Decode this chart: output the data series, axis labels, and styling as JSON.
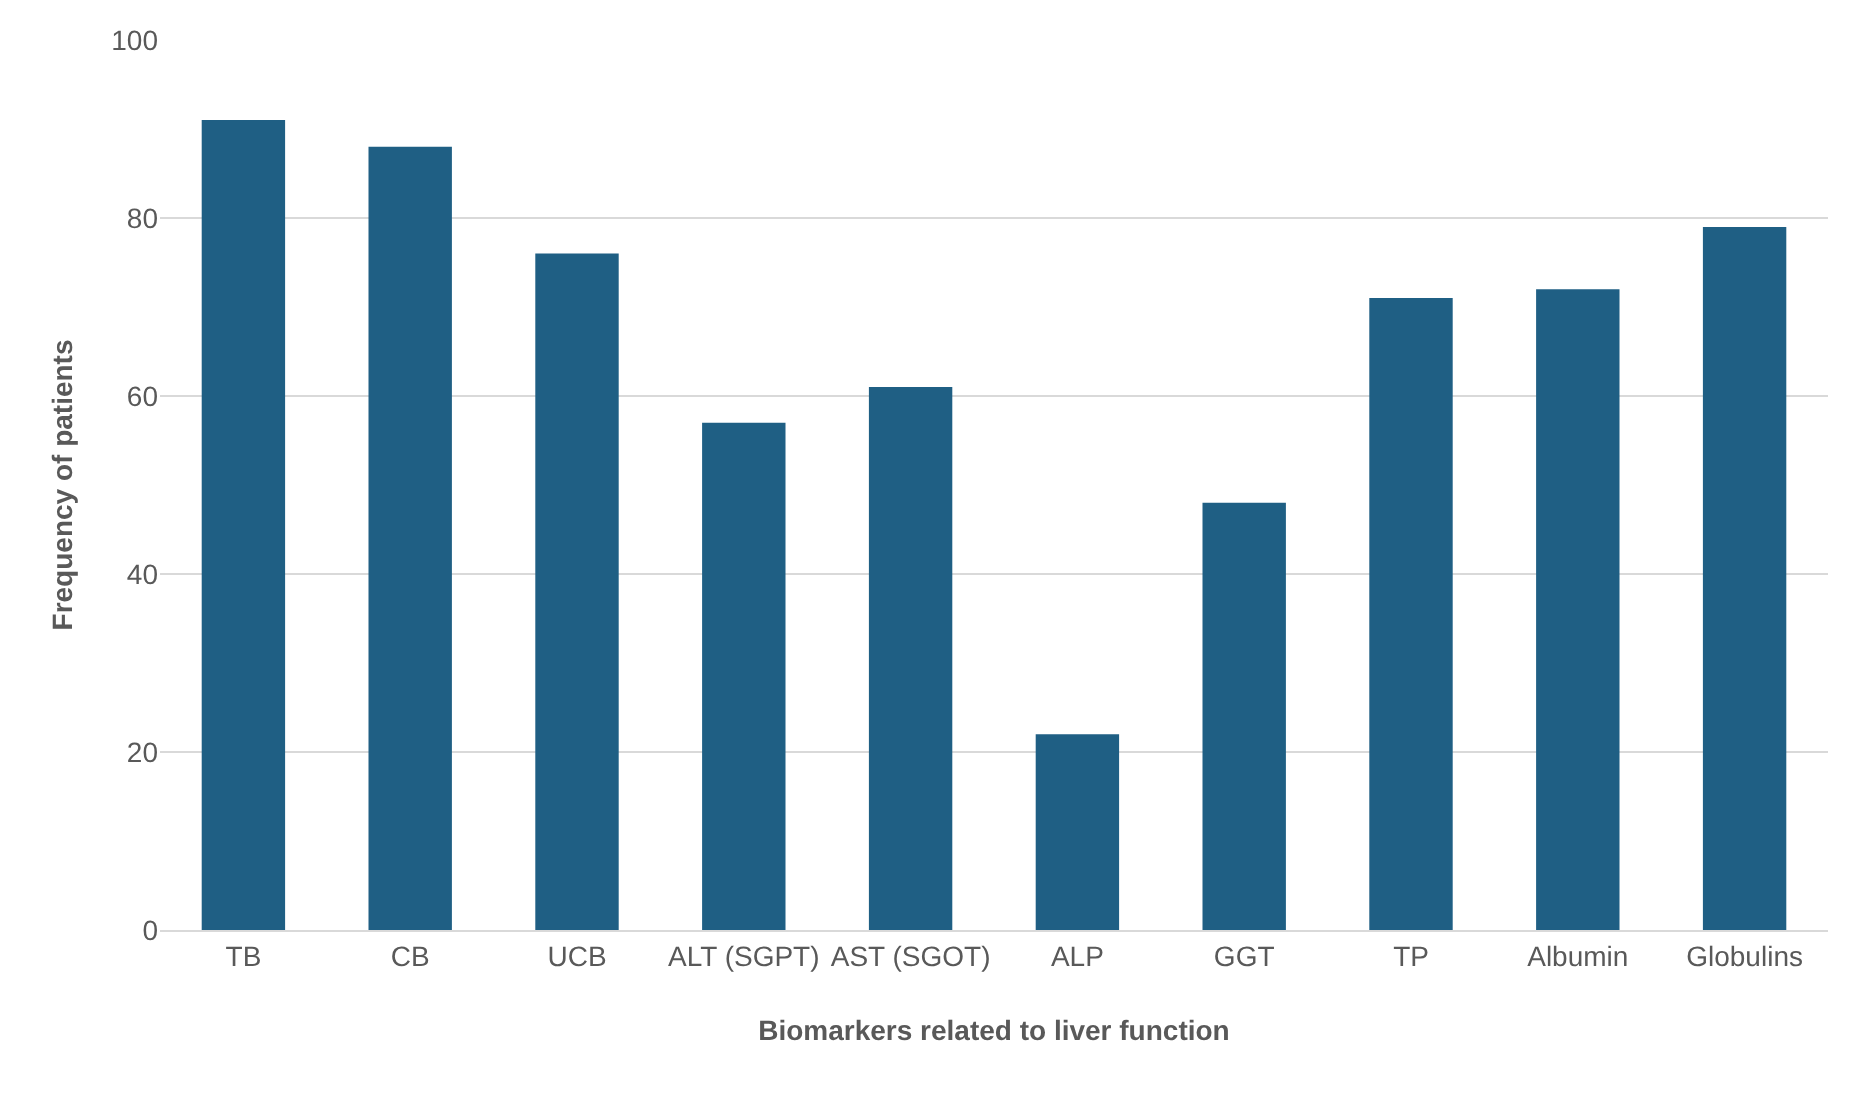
{
  "chart_data": {
    "type": "bar",
    "categories": [
      "TB",
      "CB",
      "UCB",
      "ALT (SGPT)",
      "AST (SGOT)",
      "ALP",
      "GGT",
      "TP",
      "Albumin",
      "Globulins"
    ],
    "values": [
      91,
      88,
      76,
      57,
      61,
      22,
      48,
      71,
      72,
      79
    ],
    "color": "#1f5f84",
    "xlabel": "Biomarkers related to liver function",
    "ylabel": "Frequency of patients",
    "ylim": [
      0,
      100
    ],
    "yticks": [
      0,
      20,
      40,
      60,
      80,
      100
    ],
    "grid": "y",
    "legend": false
  }
}
